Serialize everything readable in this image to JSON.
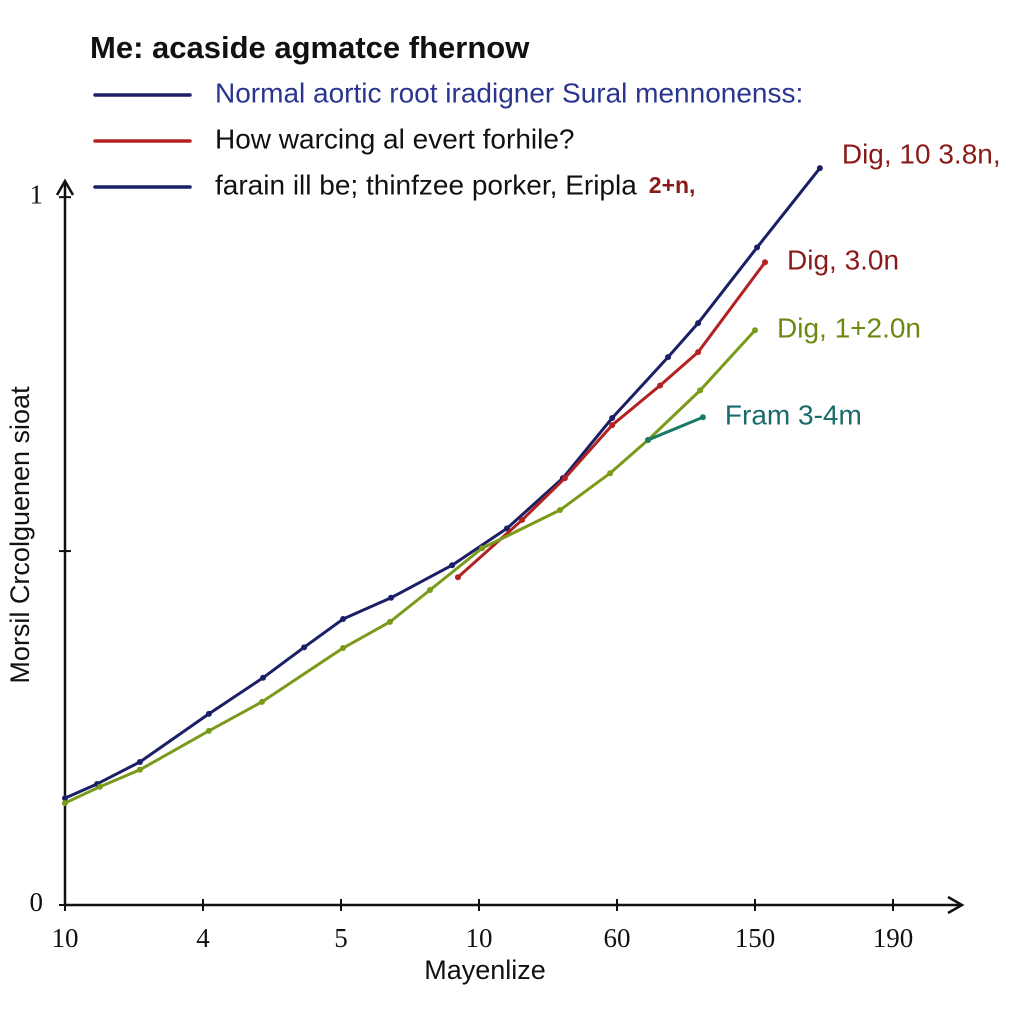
{
  "chart_data": {
    "type": "line",
    "title": "Me: acaside agmatce fhernow",
    "x_label": "Mayenlize",
    "y_label": "Morsil Crcolguenen sioat",
    "legend": [
      {
        "name": "Normal aortic root iradigner Sural mennonenss:",
        "color": "#1a1f66",
        "text_color": "#2a3590"
      },
      {
        "name": "How warcing al evert forhile?",
        "color": "#b22222",
        "text_color": "#111111"
      },
      {
        "name": "farain ill be; thinfzee porker, Eripla",
        "color": "#1a1f66",
        "text_color": "#111111",
        "tag": "2+n,",
        "tag_color": "#8b1a1a"
      }
    ],
    "xlim": [
      0,
      26
    ],
    "xticks": [
      {
        "value": 0,
        "label": "10"
      },
      4,
      {
        "value": 8,
        "label": "5"
      },
      {
        "value": 12,
        "label": "10"
      },
      {
        "value": 16,
        "label": "60"
      },
      {
        "value": 20,
        "label": "150"
      },
      {
        "value": 24,
        "label": "190"
      }
    ],
    "ylim": [
      0,
      1.02
    ],
    "yticks": [
      0,
      {
        "value": 0.5,
        "label": null
      },
      1
    ],
    "series": [
      {
        "name": "Dig, 10 3.8n,",
        "color": "#1a1f66",
        "label_color": "#8b1a1a",
        "x": [
          0,
          0.93,
          2.17,
          4.17,
          5.74,
          6.93,
          8.06,
          9.45,
          11.22,
          12.81,
          14.43,
          15.86,
          17.48,
          18.35,
          20.06,
          21.88
        ],
        "values": [
          0.151,
          0.171,
          0.202,
          0.27,
          0.321,
          0.364,
          0.404,
          0.434,
          0.48,
          0.532,
          0.603,
          0.688,
          0.774,
          0.822,
          0.929,
          1.041
        ]
      },
      {
        "name": "Dig, 3.0n",
        "color": "#b22222",
        "label_color": "#8b1a1a",
        "x": [
          11.39,
          13.25,
          14.49,
          15.86,
          17.25,
          18.35,
          20.29
        ],
        "values": [
          0.463,
          0.544,
          0.603,
          0.678,
          0.734,
          0.781,
          0.908
        ]
      },
      {
        "name": "Dig, 1+2.0n",
        "color": "#7a9a1a",
        "label_color": "#6b8a10",
        "x": [
          0,
          1.01,
          2.17,
          4.17,
          5.71,
          8.06,
          9.42,
          10.58,
          12.09,
          14.35,
          15.8,
          16.9,
          18.41,
          20
        ],
        "values": [
          0.144,
          0.167,
          0.191,
          0.246,
          0.287,
          0.363,
          0.4,
          0.445,
          0.504,
          0.558,
          0.61,
          0.657,
          0.727,
          0.812
        ]
      },
      {
        "name": "Fram 3-4m",
        "color": "#1a7a6a",
        "label_color": "#1a6a6a",
        "x": [
          16.9,
          18.49
        ],
        "values": [
          0.657,
          0.689
        ]
      }
    ]
  }
}
